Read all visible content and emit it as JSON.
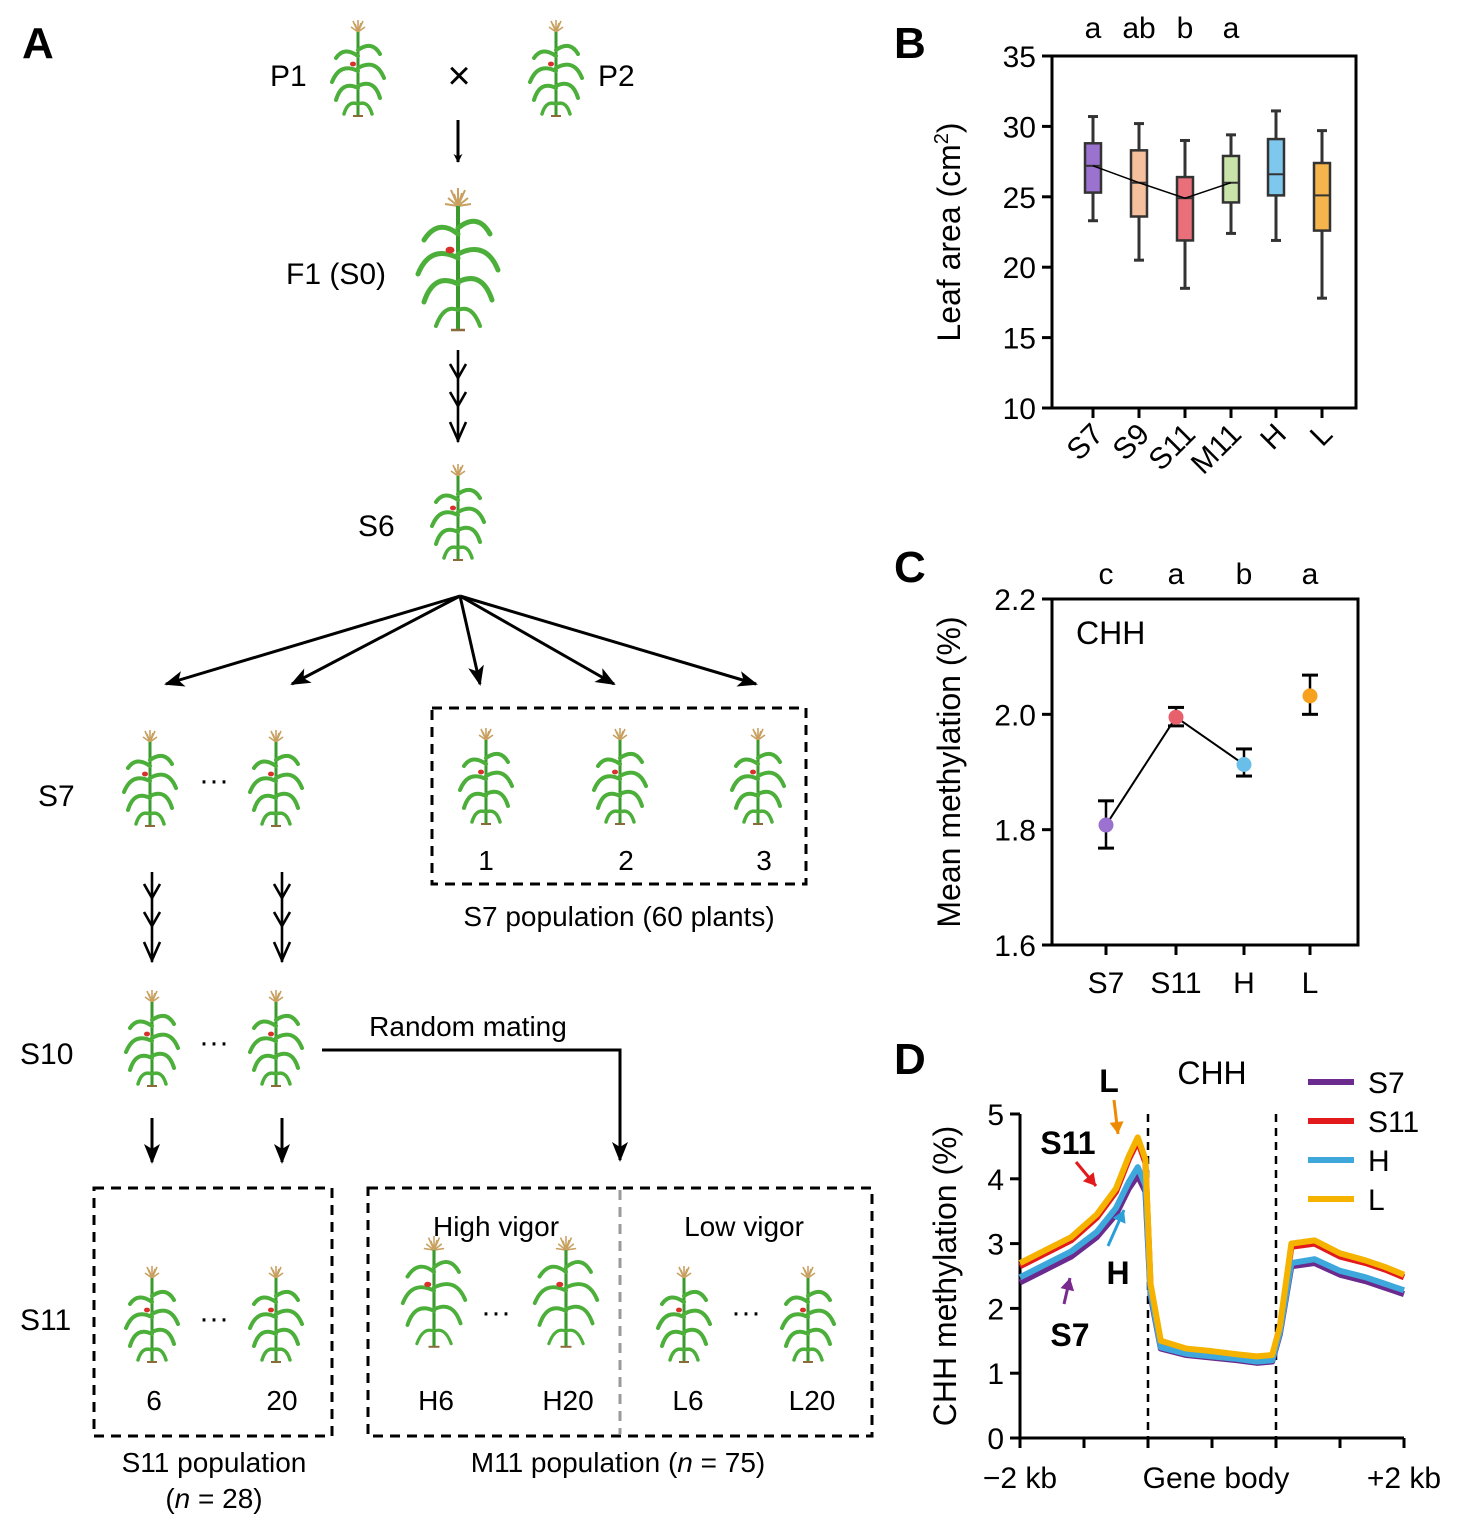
{
  "panel_a": {
    "letter": "A",
    "parent1": "P1",
    "cross": "×",
    "parent2": "P2",
    "f1": "F1 (S0)",
    "s6": "S6",
    "s7": "S7",
    "ellipsis": "···",
    "s7_box_numbers": [
      "1",
      "2",
      "3"
    ],
    "s7_population": "S7 population (60 plants)",
    "s10": "S10",
    "random_mating": "Random mating",
    "s11": "S11",
    "s11_box_numbers": [
      "6",
      "20"
    ],
    "s11_population_line1": "S11 population",
    "s11_population_line2": {
      "open": "(",
      "n": "n",
      "rest": " = 28)"
    },
    "high_vigor": "High vigor",
    "low_vigor": "Low vigor",
    "m11_high_numbers": [
      "H6",
      "H20"
    ],
    "m11_low_numbers": [
      "L6",
      "L20"
    ],
    "m11_population": {
      "prefix": "M11 population (",
      "n": "n",
      "rest": " = 75)"
    },
    "colors": {
      "stem": "#3a9a2e",
      "leaf": "#4caf3a",
      "tassel": "#c8a060",
      "ear": "#d8302a"
    }
  },
  "chart_data": [
    {
      "panel": "B",
      "type": "box",
      "title": "",
      "xlabel": "",
      "ylabel": "Leaf area (cm²)",
      "ylabel_base": "Leaf area (cm",
      "ylabel_sup": "2",
      "ylabel_end": ")",
      "ylim": [
        10,
        35
      ],
      "yticks": [
        "10",
        "15",
        "20",
        "25",
        "30",
        "35"
      ],
      "categories": [
        "S7",
        "S9",
        "S11",
        "M11",
        "H",
        "L"
      ],
      "significance": [
        "a",
        "ab",
        "b",
        "a"
      ],
      "boxes": [
        {
          "name": "S7",
          "min": 23.3,
          "q1": 25.3,
          "median": 27.2,
          "q3": 28.8,
          "max": 30.7,
          "color": "#9b72cf"
        },
        {
          "name": "S9",
          "min": 20.5,
          "q1": 23.6,
          "median": 26.0,
          "q3": 28.3,
          "max": 30.2,
          "color": "#f4c09e"
        },
        {
          "name": "S11",
          "min": 18.5,
          "q1": 21.9,
          "median": 24.9,
          "q3": 26.4,
          "max": 29.0,
          "color": "#e9707a"
        },
        {
          "name": "M11",
          "min": 22.4,
          "q1": 24.6,
          "median": 26.0,
          "q3": 27.9,
          "max": 29.4,
          "color": "#c9e3a8"
        },
        {
          "name": "H",
          "min": 21.9,
          "q1": 25.1,
          "median": 26.6,
          "q3": 29.1,
          "max": 31.1,
          "color": "#7ec8ee"
        },
        {
          "name": "L",
          "min": 17.8,
          "q1": 22.6,
          "median": 25.1,
          "q3": 27.4,
          "max": 29.7,
          "color": "#f6b44c"
        }
      ],
      "connecting_line_through_medians": [
        "S7",
        "S9",
        "S11",
        "M11"
      ]
    },
    {
      "panel": "C",
      "type": "scatter",
      "title": "CHH",
      "xlabel": "",
      "ylabel": "Mean methylation (%)",
      "ylim": [
        1.6,
        2.2
      ],
      "yticks": [
        "1.6",
        "1.8",
        "2.0",
        "2.2"
      ],
      "categories": [
        "S7",
        "S11",
        "H",
        "L"
      ],
      "significance": [
        "c",
        "a",
        "b",
        "a"
      ],
      "points": [
        {
          "name": "S7",
          "value": 1.808,
          "err_low": 1.768,
          "err_high": 1.85,
          "color": "#9b72cf"
        },
        {
          "name": "S11",
          "value": 1.995,
          "err_low": 1.98,
          "err_high": 2.012,
          "color": "#e8606c"
        },
        {
          "name": "H",
          "value": 1.913,
          "err_low": 1.893,
          "err_high": 1.94,
          "color": "#69bfe8"
        },
        {
          "name": "L",
          "value": 2.032,
          "err_low": 2.0,
          "err_high": 2.068,
          "color": "#f6a21e"
        }
      ],
      "connecting_line": [
        "S7",
        "S11",
        "H"
      ]
    },
    {
      "panel": "D",
      "type": "line",
      "title": "CHH",
      "xlabel": "",
      "ylabel": "CHH methylation (%)",
      "ylim": [
        0,
        5
      ],
      "yticks": [
        "0",
        "1",
        "2",
        "3",
        "4",
        "5"
      ],
      "xlim": [
        0,
        3
      ],
      "xticklabels": [
        "−2 kb",
        "Gene body",
        "+2 kb"
      ],
      "gene_body_boundaries": [
        1,
        2
      ],
      "legend_position": "top-right",
      "series": [
        {
          "name": "S7",
          "color": "#6a2a8e",
          "x": [
            0,
            0.2,
            0.4,
            0.6,
            0.75,
            0.85,
            0.92,
            0.98,
            1.02,
            1.1,
            1.3,
            1.5,
            1.7,
            1.85,
            1.97,
            2.03,
            2.12,
            2.3,
            2.5,
            2.7,
            2.85,
            3
          ],
          "y": [
            2.4,
            2.6,
            2.8,
            3.1,
            3.45,
            3.85,
            4.05,
            3.8,
            2.2,
            1.38,
            1.28,
            1.24,
            1.2,
            1.16,
            1.18,
            1.6,
            2.65,
            2.7,
            2.52,
            2.42,
            2.32,
            2.22
          ]
        },
        {
          "name": "S11",
          "color": "#e31a1c",
          "x": [
            0,
            0.2,
            0.4,
            0.6,
            0.75,
            0.85,
            0.92,
            0.98,
            1.02,
            1.1,
            1.3,
            1.5,
            1.7,
            1.85,
            1.97,
            2.03,
            2.12,
            2.3,
            2.5,
            2.7,
            2.85,
            3
          ],
          "y": [
            2.65,
            2.85,
            3.05,
            3.4,
            3.8,
            4.3,
            4.58,
            4.25,
            2.35,
            1.48,
            1.36,
            1.32,
            1.27,
            1.24,
            1.26,
            1.7,
            2.95,
            3.0,
            2.8,
            2.7,
            2.6,
            2.48
          ]
        },
        {
          "name": "H",
          "color": "#3ea8dc",
          "x": [
            0,
            0.2,
            0.4,
            0.6,
            0.75,
            0.85,
            0.92,
            0.98,
            1.02,
            1.1,
            1.3,
            1.5,
            1.7,
            1.85,
            1.97,
            2.03,
            2.12,
            2.3,
            2.5,
            2.7,
            2.85,
            3
          ],
          "y": [
            2.48,
            2.68,
            2.88,
            3.18,
            3.55,
            3.95,
            4.18,
            3.9,
            2.25,
            1.4,
            1.3,
            1.26,
            1.22,
            1.18,
            1.2,
            1.63,
            2.7,
            2.76,
            2.58,
            2.48,
            2.38,
            2.28
          ]
        },
        {
          "name": "L",
          "color": "#f5b300",
          "x": [
            0,
            0.2,
            0.4,
            0.6,
            0.75,
            0.85,
            0.92,
            0.98,
            1.02,
            1.1,
            1.3,
            1.5,
            1.7,
            1.85,
            1.97,
            2.03,
            2.12,
            2.3,
            2.5,
            2.7,
            2.85,
            3
          ],
          "y": [
            2.7,
            2.9,
            3.1,
            3.45,
            3.85,
            4.35,
            4.64,
            4.3,
            2.38,
            1.5,
            1.38,
            1.34,
            1.29,
            1.26,
            1.28,
            1.72,
            3.0,
            3.05,
            2.85,
            2.74,
            2.64,
            2.52
          ]
        }
      ],
      "annotations": [
        {
          "text": "L",
          "color": "#ef8a00"
        },
        {
          "text": "S11",
          "color": "#e31a1c"
        },
        {
          "text": "H",
          "color": "#2a9fd8"
        },
        {
          "text": "S7",
          "color": "#7a2a8e"
        }
      ]
    }
  ]
}
